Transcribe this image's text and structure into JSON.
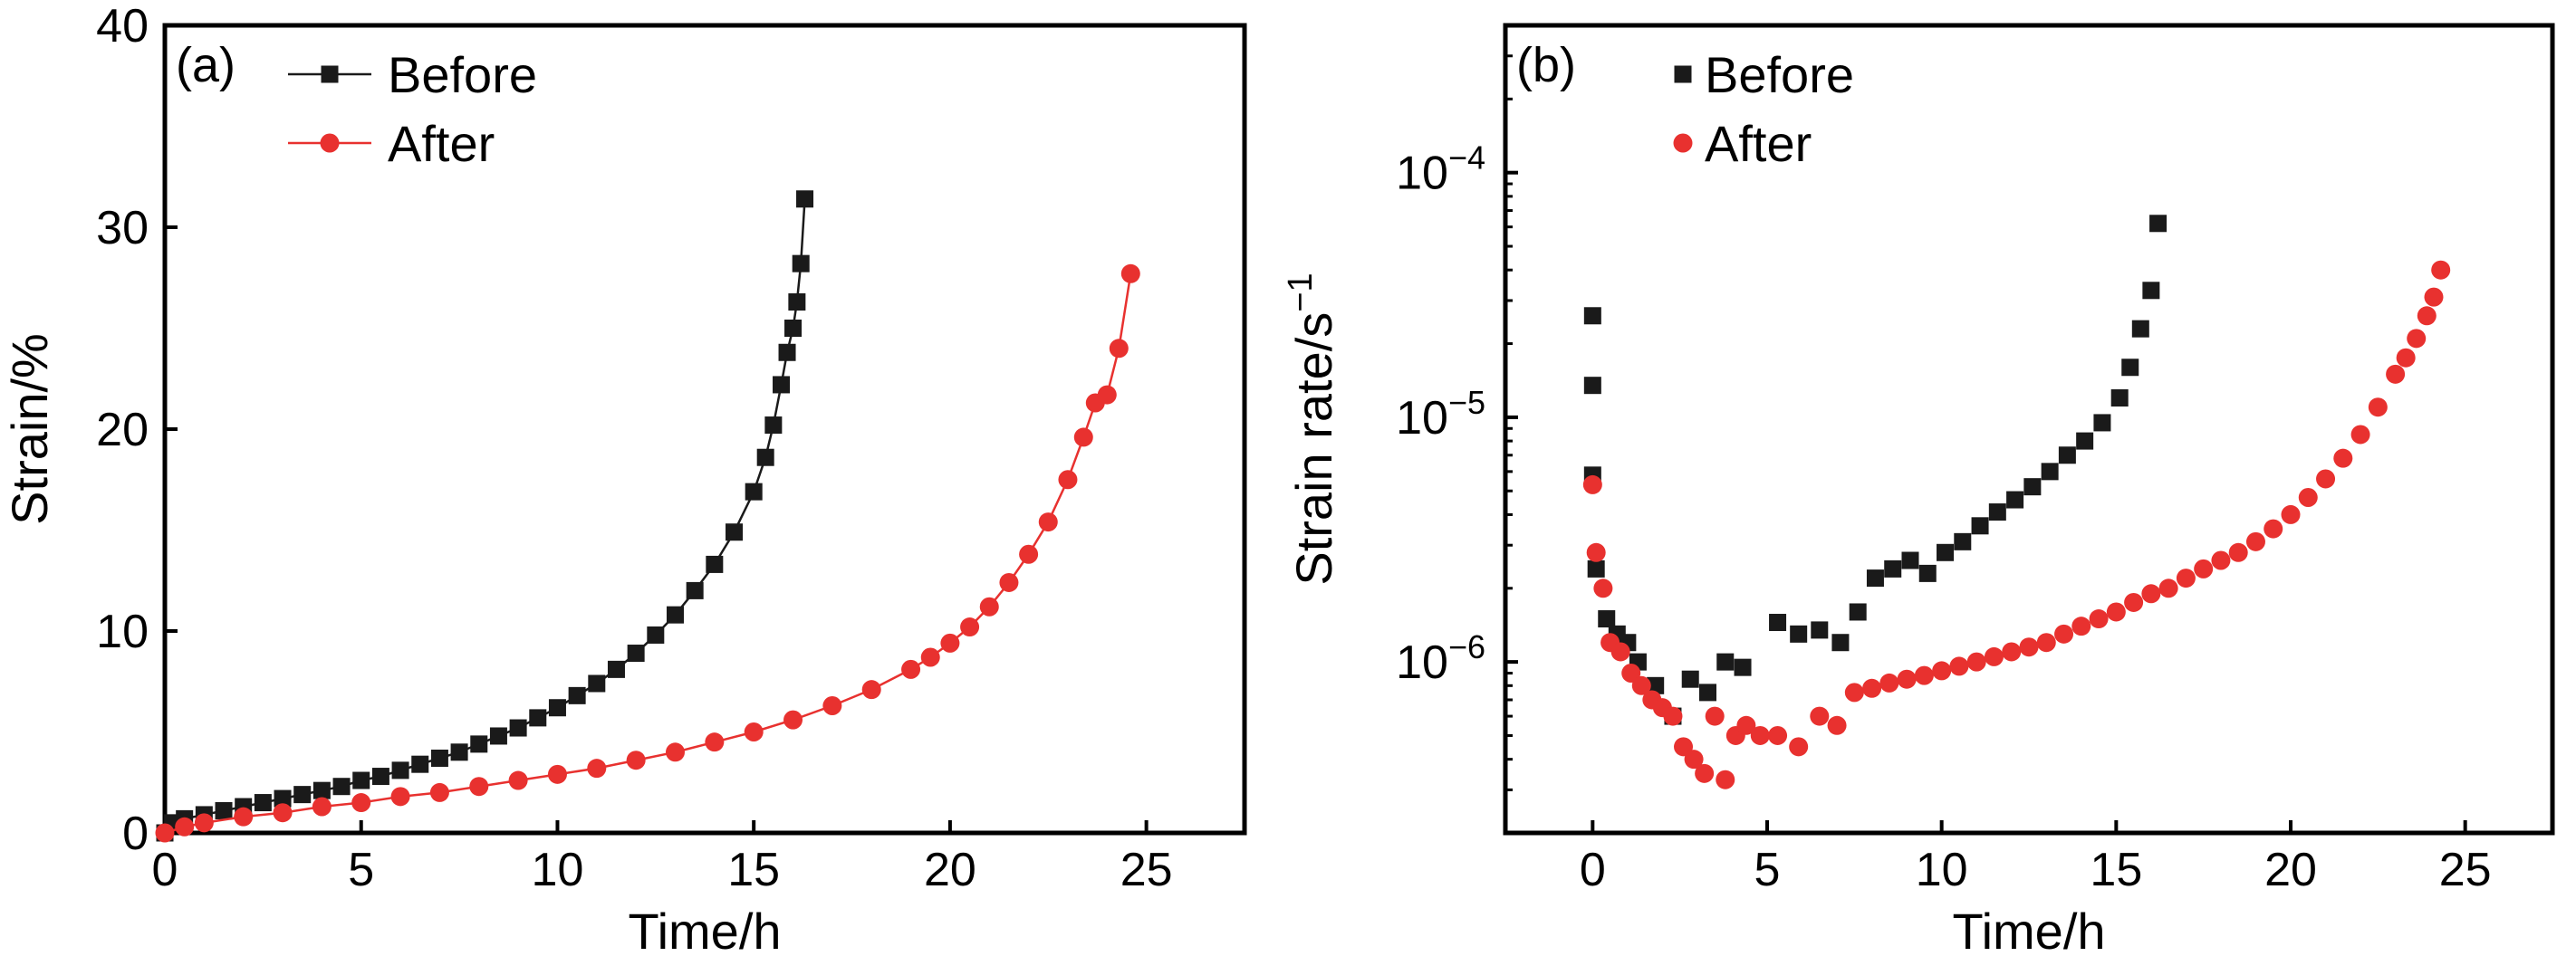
{
  "colors": {
    "before": "#1a1a1a",
    "after": "#e8312f"
  },
  "chart_data": [
    {
      "type": "line",
      "panel_label": "(a)",
      "xlabel": "Time/h",
      "ylabel": "Strain/%",
      "xlim": [
        0,
        27.5
      ],
      "ylim": [
        0,
        40
      ],
      "xticks": [
        0,
        5,
        10,
        15,
        20,
        25
      ],
      "yticks": [
        0,
        10,
        20,
        30,
        40
      ],
      "legend": {
        "placement": "top-left",
        "entries": [
          "Before",
          "After"
        ]
      },
      "series": [
        {
          "name": "Before",
          "marker": "square",
          "x": [
            0,
            0.2,
            0.5,
            1,
            1.5,
            2,
            2.5,
            3,
            3.5,
            4,
            4.5,
            5,
            5.5,
            6,
            6.5,
            7,
            7.5,
            8,
            8.5,
            9,
            9.5,
            10,
            10.5,
            11,
            11.5,
            12,
            12.5,
            13,
            13.5,
            14,
            14.5,
            15,
            15.3,
            15.5,
            15.7,
            15.85,
            16.0,
            16.1,
            16.2,
            16.3
          ],
          "y": [
            0,
            0.5,
            0.7,
            0.9,
            1.1,
            1.3,
            1.5,
            1.7,
            1.9,
            2.1,
            2.3,
            2.6,
            2.8,
            3.1,
            3.4,
            3.7,
            4.0,
            4.4,
            4.8,
            5.2,
            5.7,
            6.2,
            6.8,
            7.4,
            8.1,
            8.9,
            9.8,
            10.8,
            12.0,
            13.3,
            14.9,
            16.9,
            18.6,
            20.2,
            22.2,
            23.8,
            25.0,
            26.3,
            28.2,
            31.4
          ]
        },
        {
          "name": "After",
          "marker": "circle",
          "x": [
            0,
            0.5,
            1,
            2,
            3,
            4,
            5,
            6,
            7,
            8,
            9,
            10,
            11,
            12,
            13,
            14,
            15,
            16,
            17,
            18,
            19,
            19.5,
            20,
            20.5,
            21,
            21.5,
            22,
            22.5,
            23,
            23.4,
            23.7,
            24.0,
            24.3,
            24.6
          ],
          "y": [
            0,
            0.3,
            0.5,
            0.8,
            1.0,
            1.3,
            1.5,
            1.8,
            2.0,
            2.3,
            2.6,
            2.9,
            3.2,
            3.6,
            4.0,
            4.5,
            5.0,
            5.6,
            6.3,
            7.1,
            8.1,
            8.7,
            9.4,
            10.2,
            11.2,
            12.4,
            13.8,
            15.4,
            17.5,
            19.6,
            21.3,
            21.7,
            24.0,
            27.7
          ]
        }
      ]
    },
    {
      "type": "scatter",
      "panel_label": "(b)",
      "xlabel": "Time/h",
      "ylabel": "Strain rate/s",
      "ylabel_superscript": "−1",
      "xlim": [
        -2.5,
        27.5
      ],
      "ylim": [
        2e-07,
        0.0004
      ],
      "yscale": "log",
      "xticks": [
        0,
        5,
        10,
        15,
        20,
        25
      ],
      "yticks": [
        {
          "value": 1e-06,
          "base": "10",
          "exp": "−6"
        },
        {
          "value": 1e-05,
          "base": "10",
          "exp": "−5"
        },
        {
          "value": 0.0001,
          "base": "10",
          "exp": "−4"
        }
      ],
      "legend": {
        "placement": "top-left",
        "entries": [
          "Before",
          "After"
        ]
      },
      "series": [
        {
          "name": "Before",
          "marker": "square",
          "x": [
            0,
            0,
            0,
            0.1,
            0.4,
            0.7,
            1.0,
            1.3,
            1.8,
            2.3,
            2.8,
            3.3,
            3.8,
            4.3,
            5.3,
            5.9,
            6.5,
            7.1,
            7.6,
            8.1,
            8.6,
            9.1,
            9.6,
            10.1,
            10.6,
            11.1,
            11.6,
            12.1,
            12.6,
            13.1,
            13.6,
            14.1,
            14.6,
            15.1,
            15.4,
            15.7,
            16.0,
            16.2
          ],
          "y": [
            2.6e-05,
            1.35e-05,
            5.8e-06,
            2.4e-06,
            1.5e-06,
            1.3e-06,
            1.2e-06,
            1e-06,
            8e-07,
            6e-07,
            8.5e-07,
            7.5e-07,
            1e-06,
            9.5e-07,
            1.45e-06,
            1.3e-06,
            1.35e-06,
            1.2e-06,
            1.6e-06,
            2.2e-06,
            2.4e-06,
            2.6e-06,
            2.3e-06,
            2.8e-06,
            3.1e-06,
            3.6e-06,
            4.1e-06,
            4.6e-06,
            5.2e-06,
            6e-06,
            7e-06,
            8e-06,
            9.5e-06,
            1.2e-05,
            1.6e-05,
            2.3e-05,
            3.3e-05,
            6.2e-05
          ]
        },
        {
          "name": "After",
          "marker": "circle",
          "x": [
            0,
            0.1,
            0.3,
            0.5,
            0.8,
            1.1,
            1.4,
            1.7,
            2.0,
            2.3,
            2.6,
            2.9,
            3.2,
            3.5,
            3.8,
            4.1,
            4.4,
            4.8,
            5.3,
            5.9,
            6.5,
            7.0,
            7.5,
            8.0,
            8.5,
            9.0,
            9.5,
            10.0,
            10.5,
            11.0,
            11.5,
            12.0,
            12.5,
            13.0,
            13.5,
            14.0,
            14.5,
            15.0,
            15.5,
            16.0,
            16.5,
            17.0,
            17.5,
            18.0,
            18.5,
            19.0,
            19.5,
            20.0,
            20.5,
            21.0,
            21.5,
            22.0,
            22.5,
            23.0,
            23.3,
            23.6,
            23.9,
            24.1,
            24.3
          ],
          "y": [
            5.3e-06,
            2.8e-06,
            2e-06,
            1.2e-06,
            1.1e-06,
            9e-07,
            8e-07,
            7e-07,
            6.5e-07,
            6e-07,
            4.5e-07,
            4e-07,
            3.5e-07,
            6e-07,
            3.3e-07,
            5e-07,
            5.5e-07,
            5e-07,
            5e-07,
            4.5e-07,
            6e-07,
            5.5e-07,
            7.5e-07,
            7.8e-07,
            8.2e-07,
            8.5e-07,
            8.8e-07,
            9.2e-07,
            9.6e-07,
            1e-06,
            1.05e-06,
            1.1e-06,
            1.15e-06,
            1.2e-06,
            1.3e-06,
            1.4e-06,
            1.5e-06,
            1.6e-06,
            1.75e-06,
            1.9e-06,
            2e-06,
            2.2e-06,
            2.4e-06,
            2.6e-06,
            2.8e-06,
            3.1e-06,
            3.5e-06,
            4e-06,
            4.7e-06,
            5.6e-06,
            6.8e-06,
            8.5e-06,
            1.1e-05,
            1.5e-05,
            1.75e-05,
            2.1e-05,
            2.6e-05,
            3.1e-05,
            4e-05
          ]
        }
      ]
    }
  ]
}
